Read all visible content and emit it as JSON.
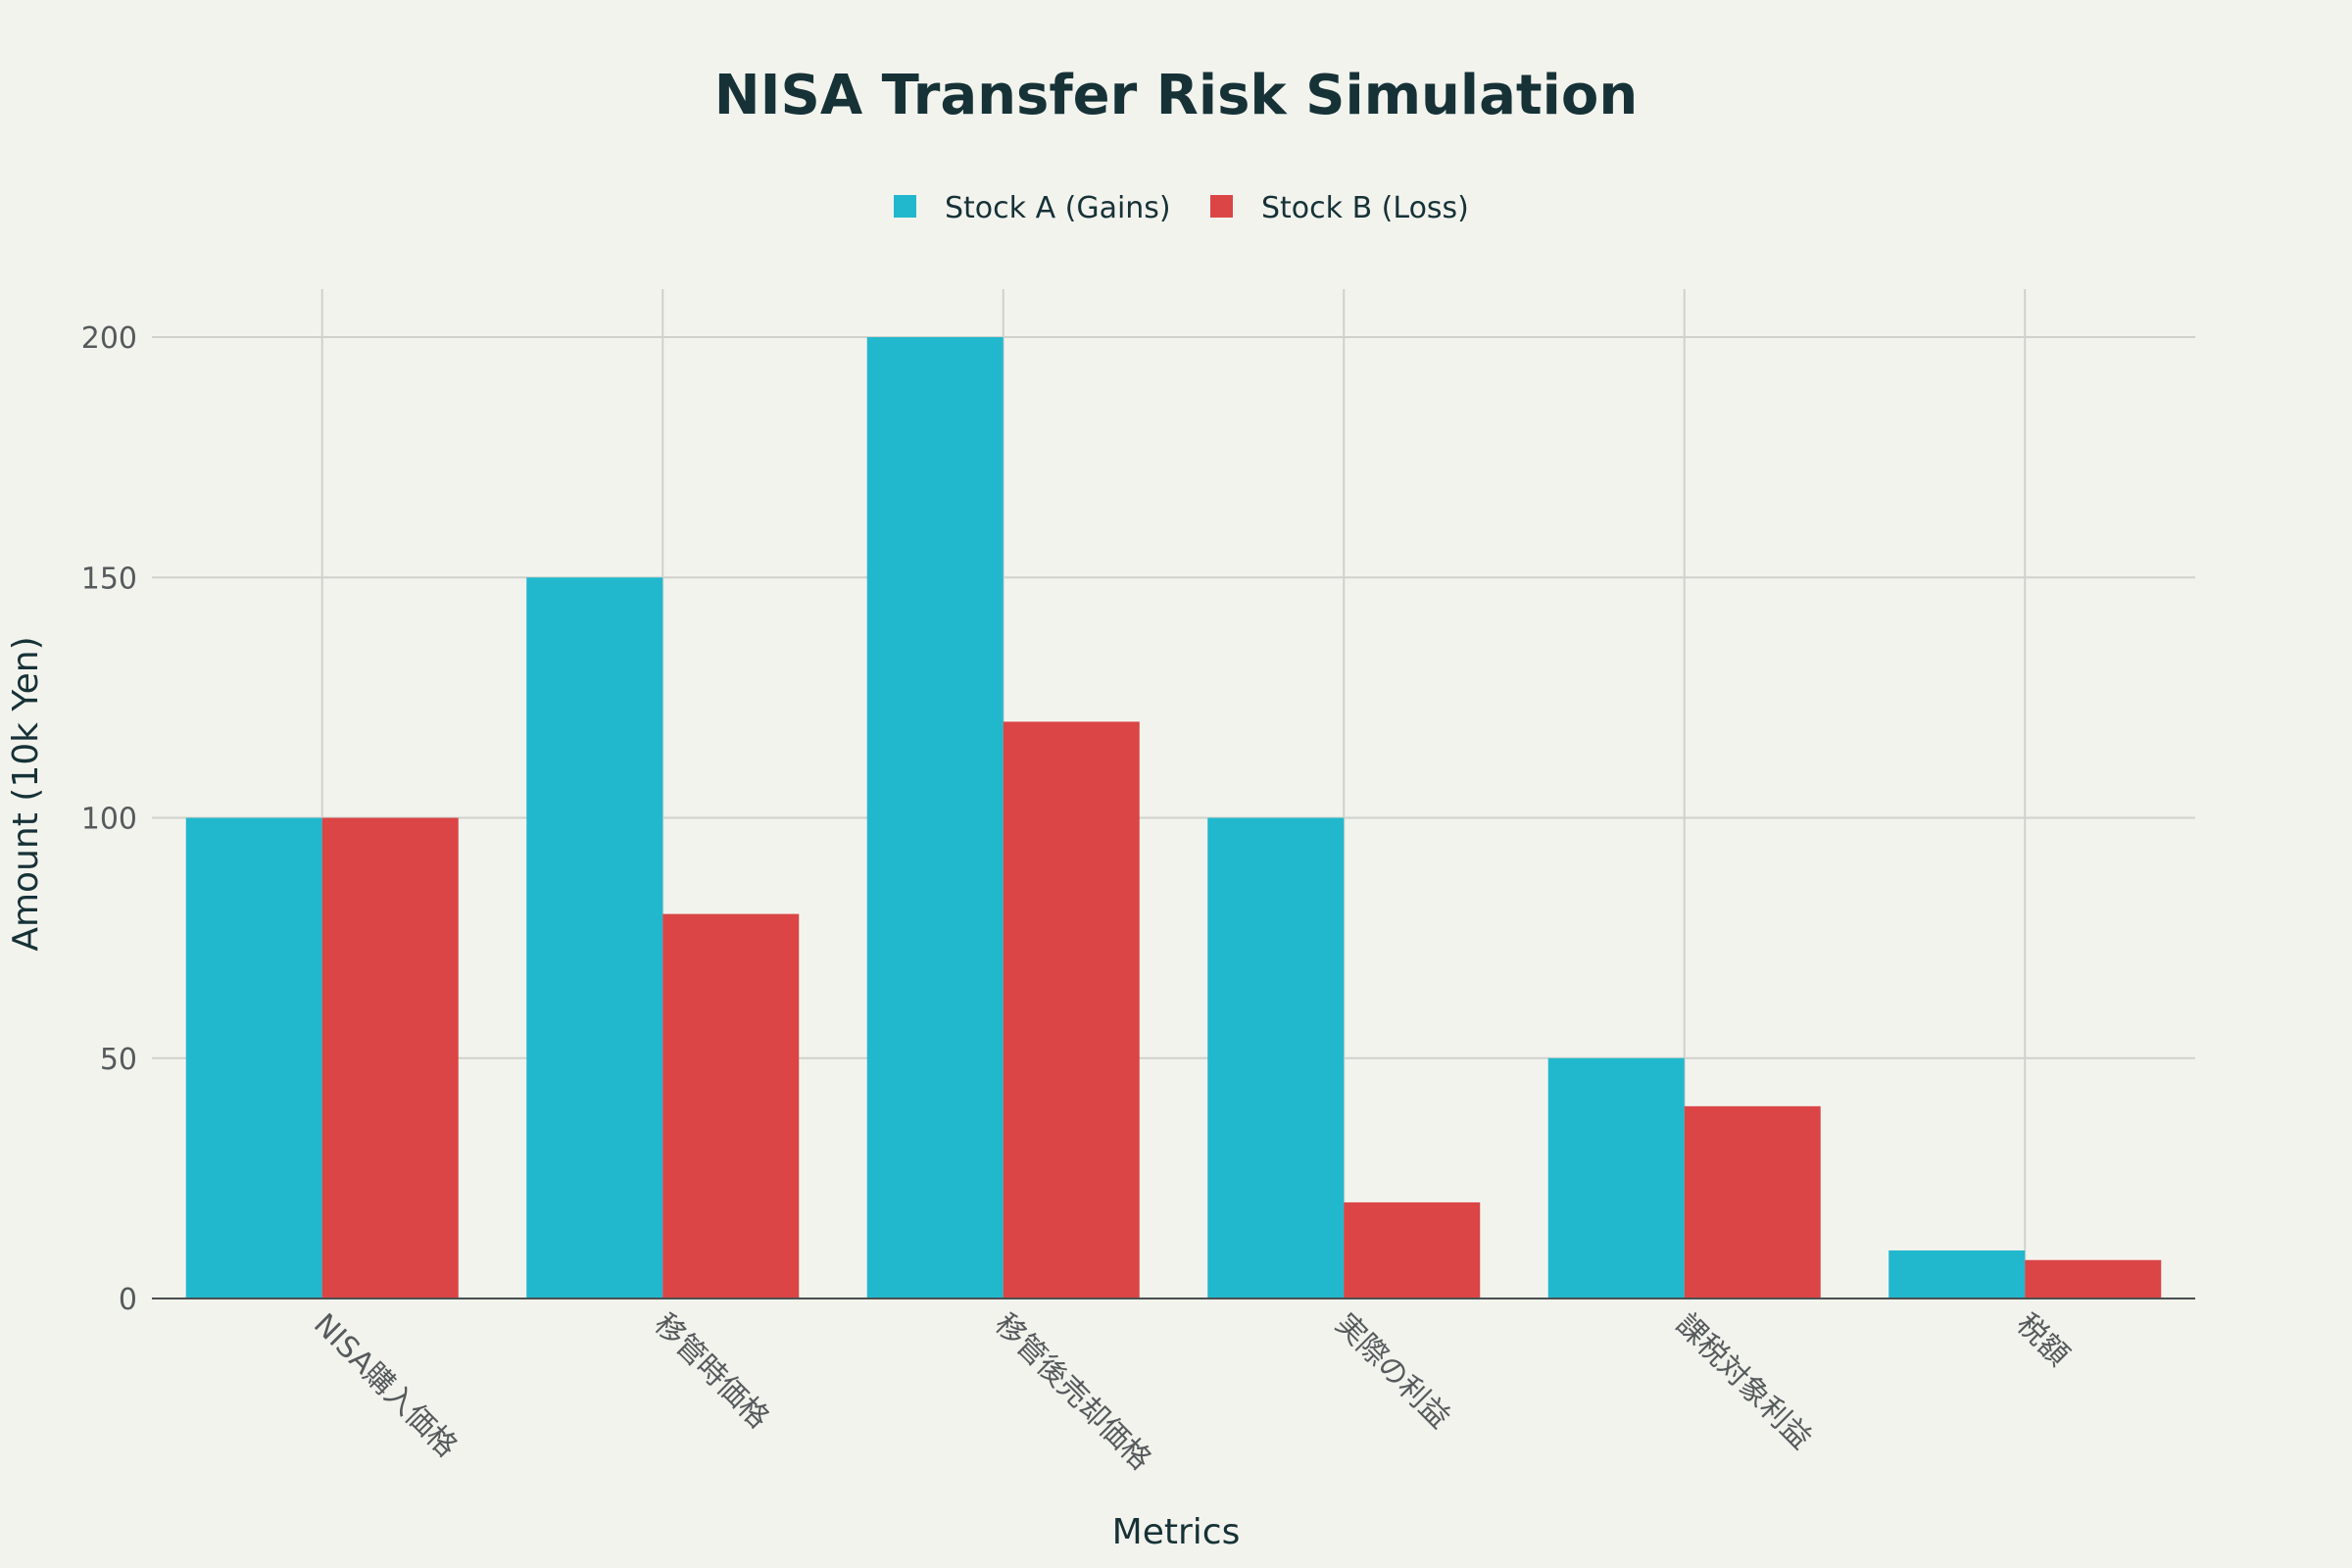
{
  "chart_data": {
    "type": "bar",
    "title": "NISA Transfer Risk Simulation",
    "xlabel": "Metrics",
    "ylabel": "Amount (10k Yen)",
    "categories": [
      "NISA購入価格",
      "移管時価格",
      "移管後売却価格",
      "実際の利益",
      "課税対象利益",
      "税額"
    ],
    "series": [
      {
        "name": "Stock A (Gains)",
        "color": "#21b8cd",
        "values": [
          100,
          150,
          200,
          100,
          50,
          10
        ]
      },
      {
        "name": "Stock B (Loss)",
        "color": "#db4545",
        "values": [
          100,
          80,
          120,
          20,
          40,
          8
        ]
      }
    ],
    "ylim": [
      0,
      210
    ],
    "yticks": [
      0,
      50,
      100,
      150,
      200
    ],
    "grid": true,
    "legend_position": "top-center"
  }
}
